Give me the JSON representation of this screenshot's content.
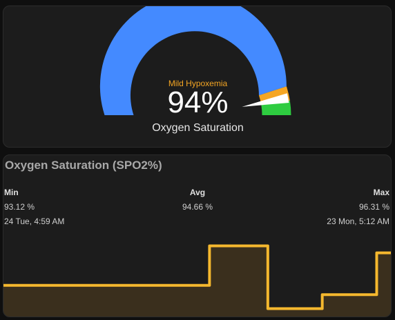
{
  "gauge": {
    "value": 94,
    "value_text": "94%",
    "severity_label": "Mild Hypoxemia",
    "name": "Oxygen Saturation",
    "min": 0,
    "max": 100,
    "segments": [
      {
        "from": 0,
        "to": 90,
        "color": "#448aff"
      },
      {
        "from": 90,
        "to": 95,
        "color": "#f5a623"
      },
      {
        "from": 95,
        "to": 100,
        "color": "#2ecc40"
      }
    ],
    "needle_color": "#ffffff"
  },
  "graph": {
    "title": "Oxygen Saturation (SPO2%)",
    "min_label": "Min",
    "min_value": "93.12 %",
    "min_time": "24 Tue, 4:59 AM",
    "avg_label": "Avg",
    "avg_value": "94.66 %",
    "max_label": "Max",
    "max_value": "96.31 %",
    "max_time": "23 Mon, 5:12 AM",
    "line_color": "#f5b82e",
    "fill_color": "#3a2f1d"
  },
  "chart_data": {
    "type": "line",
    "step": true,
    "values": [
      94.4,
      94.4,
      94.4,
      96.1,
      96.1,
      93.4,
      93.4,
      94.0,
      94.0,
      95.8,
      95.8,
      94.0
    ],
    "ylim": [
      93.0,
      96.5
    ]
  }
}
